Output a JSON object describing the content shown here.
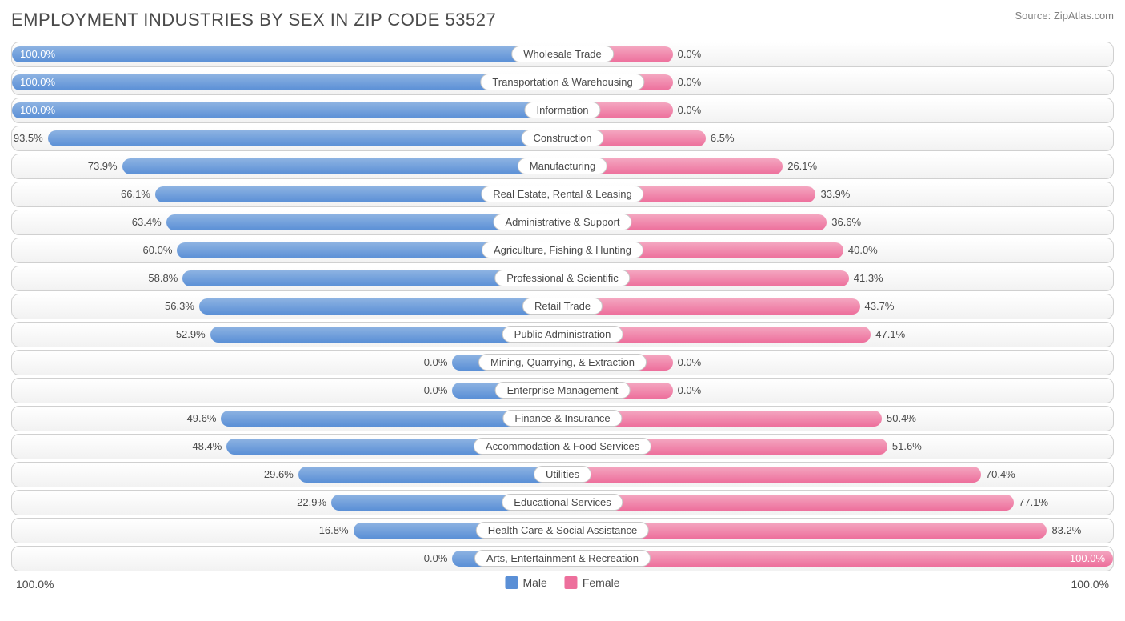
{
  "title": "EMPLOYMENT INDUSTRIES BY SEX IN ZIP CODE 53527",
  "source": "Source: ZipAtlas.com",
  "chart": {
    "type": "diverging-bar",
    "male_color": "#5a8fd6",
    "male_color_light": "#8db3e2",
    "female_color": "#ed6f9c",
    "female_color_light": "#f4a6c0",
    "row_bg_top": "#ffffff",
    "row_bg_bottom": "#f2f2f2",
    "border_color": "#d0d0d0",
    "label_bg": "#ffffff",
    "text_color": "#4a4a4a",
    "rows": [
      {
        "label": "Wholesale Trade",
        "male": 100.0,
        "female": 0.0,
        "male_bar": 100,
        "female_bar": 20
      },
      {
        "label": "Transportation & Warehousing",
        "male": 100.0,
        "female": 0.0,
        "male_bar": 100,
        "female_bar": 20
      },
      {
        "label": "Information",
        "male": 100.0,
        "female": 0.0,
        "male_bar": 100,
        "female_bar": 20
      },
      {
        "label": "Construction",
        "male": 93.5,
        "female": 6.5,
        "male_bar": 93.5,
        "female_bar": 26
      },
      {
        "label": "Manufacturing",
        "male": 73.9,
        "female": 26.1,
        "male_bar": 80,
        "female_bar": 40
      },
      {
        "label": "Real Estate, Rental & Leasing",
        "male": 66.1,
        "female": 33.9,
        "male_bar": 74,
        "female_bar": 46
      },
      {
        "label": "Administrative & Support",
        "male": 63.4,
        "female": 36.6,
        "male_bar": 72,
        "female_bar": 48
      },
      {
        "label": "Agriculture, Fishing & Hunting",
        "male": 60.0,
        "female": 40.0,
        "male_bar": 70,
        "female_bar": 51
      },
      {
        "label": "Professional & Scientific",
        "male": 58.8,
        "female": 41.3,
        "male_bar": 69,
        "female_bar": 52
      },
      {
        "label": "Retail Trade",
        "male": 56.3,
        "female": 43.7,
        "male_bar": 66,
        "female_bar": 54
      },
      {
        "label": "Public Administration",
        "male": 52.9,
        "female": 47.1,
        "male_bar": 64,
        "female_bar": 56
      },
      {
        "label": "Mining, Quarrying, & Extraction",
        "male": 0.0,
        "female": 0.0,
        "male_bar": 20,
        "female_bar": 20
      },
      {
        "label": "Enterprise Management",
        "male": 0.0,
        "female": 0.0,
        "male_bar": 20,
        "female_bar": 20
      },
      {
        "label": "Finance & Insurance",
        "male": 49.6,
        "female": 50.4,
        "male_bar": 62,
        "female_bar": 58
      },
      {
        "label": "Accommodation & Food Services",
        "male": 48.4,
        "female": 51.6,
        "male_bar": 61,
        "female_bar": 59
      },
      {
        "label": "Utilities",
        "male": 29.6,
        "female": 70.4,
        "male_bar": 48,
        "female_bar": 76
      },
      {
        "label": "Educational Services",
        "male": 22.9,
        "female": 77.1,
        "male_bar": 42,
        "female_bar": 82
      },
      {
        "label": "Health Care & Social Assistance",
        "male": 16.8,
        "female": 83.2,
        "male_bar": 38,
        "female_bar": 88
      },
      {
        "label": "Arts, Entertainment & Recreation",
        "male": 0.0,
        "female": 100.0,
        "male_bar": 20,
        "female_bar": 100
      }
    ]
  },
  "legend": {
    "male": "Male",
    "female": "Female"
  },
  "axis": {
    "left": "100.0%",
    "right": "100.0%"
  }
}
